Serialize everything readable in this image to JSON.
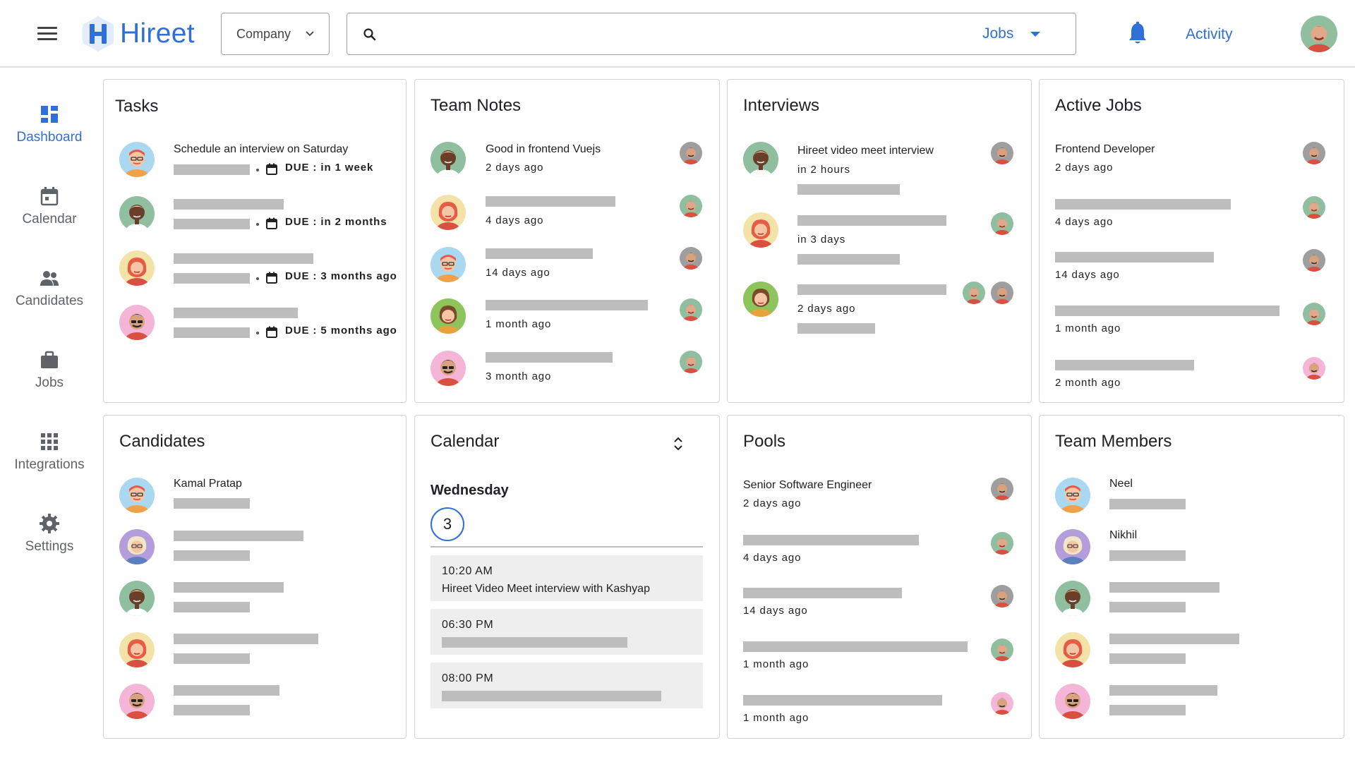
{
  "app": {
    "name": "Hireet"
  },
  "topbar": {
    "company_label": "Company",
    "search_placeholder": "",
    "search_scope": "Jobs",
    "activity_label": "Activity"
  },
  "sidebar": {
    "items": [
      {
        "label": "Dashboard",
        "icon": "dashboard-icon",
        "active": true
      },
      {
        "label": "Calendar",
        "icon": "calendar-icon"
      },
      {
        "label": "Candidates",
        "icon": "people-icon"
      },
      {
        "label": "Jobs",
        "icon": "briefcase-icon"
      },
      {
        "label": "Integrations",
        "icon": "apps-grid-icon"
      },
      {
        "label": "Settings",
        "icon": "gear-icon"
      }
    ]
  },
  "tasks": {
    "title": "Tasks",
    "items": [
      {
        "text": "Schedule an interview on Saturday",
        "due": "DUE : in 1 week"
      },
      {
        "text": "",
        "due": "DUE : in 2 months"
      },
      {
        "text": "",
        "due": "DUE : 3 months ago"
      },
      {
        "text": "",
        "due": "DUE : 5 months ago"
      }
    ]
  },
  "team_notes": {
    "title": "Team Notes",
    "items": [
      {
        "text": "Good in frontend Vuejs",
        "time": "2 days ago"
      },
      {
        "text": "",
        "time": "4 days ago"
      },
      {
        "text": "",
        "time": "14 days ago"
      },
      {
        "text": "",
        "time": "1 month ago"
      },
      {
        "text": "",
        "time": "3 month ago"
      }
    ]
  },
  "interviews": {
    "title": "Interviews",
    "items": [
      {
        "text": "Hireet video meet interview",
        "time": "in 2 hours"
      },
      {
        "text": "",
        "time": "in 3 days"
      },
      {
        "text": "",
        "time": "2 days ago"
      }
    ]
  },
  "active_jobs": {
    "title": "Active Jobs",
    "items": [
      {
        "text": "Frontend Developer",
        "time": "2 days ago"
      },
      {
        "text": "",
        "time": "4 days ago"
      },
      {
        "text": "",
        "time": "14 days ago"
      },
      {
        "text": "",
        "time": "1 month ago"
      },
      {
        "text": "",
        "time": "2 month ago"
      }
    ]
  },
  "candidates": {
    "title": "Candidates",
    "items": [
      {
        "name": "Kamal Pratap"
      },
      {
        "name": ""
      },
      {
        "name": ""
      },
      {
        "name": ""
      },
      {
        "name": ""
      }
    ]
  },
  "calendar": {
    "title": "Calendar",
    "weekday": "Wednesday",
    "date": "3",
    "events": [
      {
        "time": "10:20 AM",
        "title": "Hireet Video Meet interview with Kashyap"
      },
      {
        "time": "06:30 PM",
        "title": ""
      },
      {
        "time": "08:00 PM",
        "title": ""
      }
    ]
  },
  "pools": {
    "title": "Pools",
    "items": [
      {
        "text": "Senior Software Engineer",
        "time": "2 days ago"
      },
      {
        "text": "",
        "time": "4 days ago"
      },
      {
        "text": "",
        "time": "14 days ago"
      },
      {
        "text": "",
        "time": "1 month ago"
      },
      {
        "text": "",
        "time": "1 month ago"
      }
    ]
  },
  "team_members": {
    "title": "Team Members",
    "items": [
      {
        "name": "Neel"
      },
      {
        "name": "Nikhil"
      },
      {
        "name": ""
      },
      {
        "name": ""
      },
      {
        "name": ""
      }
    ]
  },
  "colors": {
    "accent": "#2f6fd6",
    "placeholder_bar": "#bdbdbd",
    "card_border": "#cfd2d6"
  }
}
